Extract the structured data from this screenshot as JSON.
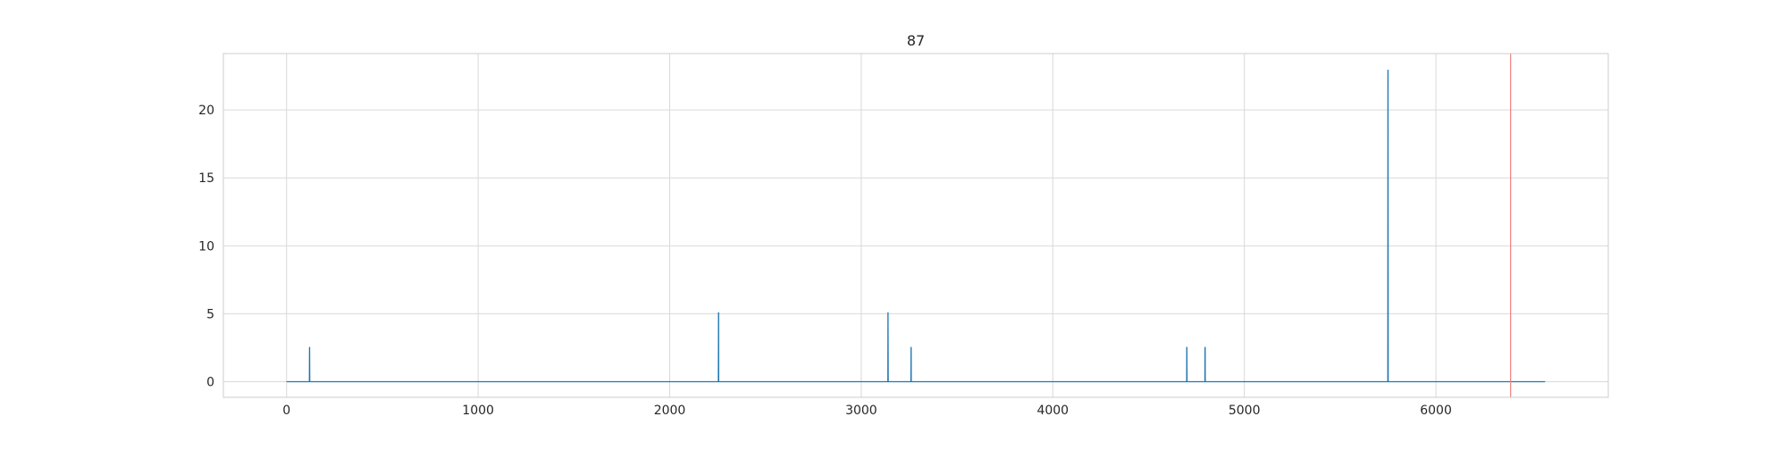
{
  "chart_data": {
    "type": "line",
    "title": "87",
    "xlabel": "",
    "ylabel": "",
    "xlim": [
      -330,
      6900
    ],
    "ylim": [
      -1.15,
      24.15
    ],
    "grid": true,
    "x_ticks": [
      0,
      1000,
      2000,
      3000,
      4000,
      5000,
      6000
    ],
    "y_ticks": [
      0,
      5,
      10,
      15,
      20
    ],
    "series": [
      {
        "color": "#1f77b4",
        "x_range": [
          0,
          6570
        ],
        "baseline": 0,
        "spikes": [
          {
            "x": 120,
            "y": 2.55
          },
          {
            "x": 2255,
            "y": 5.1
          },
          {
            "x": 3140,
            "y": 5.1
          },
          {
            "x": 3260,
            "y": 2.55
          },
          {
            "x": 4700,
            "y": 2.55
          },
          {
            "x": 4795,
            "y": 2.55
          },
          {
            "x": 5750,
            "y": 22.95
          }
        ]
      }
    ],
    "vline": {
      "x": 6390,
      "color": "#f08080"
    }
  }
}
